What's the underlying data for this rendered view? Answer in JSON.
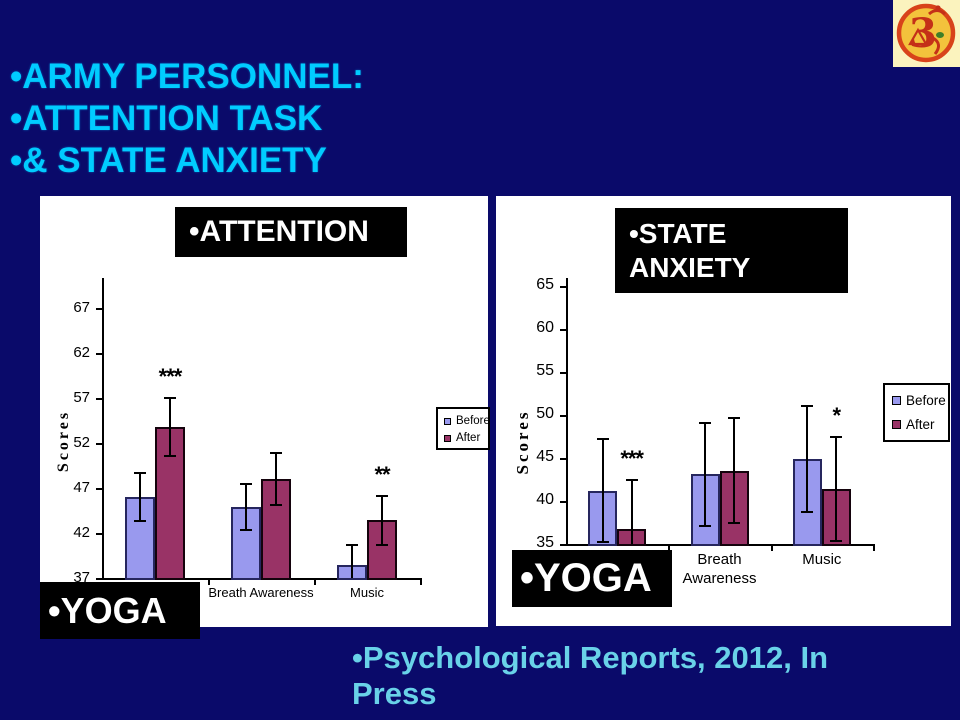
{
  "slide": {
    "title_lines": [
      "•ARMY PERSONNEL:",
      "•ATTENTION TASK",
      "•& STATE ANXIETY"
    ],
    "citation": "•Psychological Reports, 2012, In Press",
    "colors": {
      "background": "#0a0a6a",
      "title_text": "#00ccff",
      "citation_text": "#69d2e8",
      "panel_bg": "#ffffff",
      "label_box_bg": "#000000",
      "label_box_text": "#ffffff",
      "before_bar": "#9999ee",
      "after_bar": "#993366"
    }
  },
  "chart_data": [
    {
      "type": "bar",
      "title_box": "•ATTENTION",
      "category_overlay": "•YOGA",
      "ylabel": "Scores",
      "categories": [
        "Yoga",
        "Breath Awareness",
        "Music"
      ],
      "yticks": [
        37,
        42,
        47,
        52,
        57,
        62,
        67
      ],
      "ylim": [
        37,
        70
      ],
      "grid": false,
      "legend_position": "right",
      "series": [
        {
          "name": "Before",
          "color": "#9999ee",
          "values": [
            46.0,
            44.9,
            38.4
          ],
          "errors": [
            2.7,
            2.6,
            2.3
          ]
        },
        {
          "name": "After",
          "color": "#993366",
          "values": [
            53.8,
            48.0,
            43.4
          ],
          "errors": [
            3.2,
            2.9,
            2.7
          ]
        }
      ],
      "annotations": [
        {
          "text": "***",
          "category": 0,
          "series": "After"
        },
        {
          "text": "**",
          "category": 2,
          "series": "After"
        }
      ]
    },
    {
      "type": "bar",
      "title_box": "•STATE ANXIETY",
      "category_overlay": "•YOGA",
      "ylabel": "Scores",
      "categories": [
        "Yoga",
        "Breath Awareness",
        "Music"
      ],
      "yticks": [
        35,
        40,
        45,
        50,
        55,
        60,
        65
      ],
      "ylim": [
        35,
        66
      ],
      "grid": false,
      "legend_position": "right",
      "series": [
        {
          "name": "Before",
          "color": "#9999ee",
          "values": [
            41.2,
            43.1,
            44.9
          ],
          "errors": [
            6.0,
            6.0,
            6.2
          ]
        },
        {
          "name": "After",
          "color": "#993366",
          "values": [
            36.7,
            43.5,
            41.4
          ],
          "errors": [
            5.8,
            6.1,
            6.0
          ]
        }
      ],
      "annotations": [
        {
          "text": "***",
          "category": 0,
          "series": "After"
        },
        {
          "text": "*",
          "category": 2,
          "series": "After"
        }
      ]
    }
  ]
}
